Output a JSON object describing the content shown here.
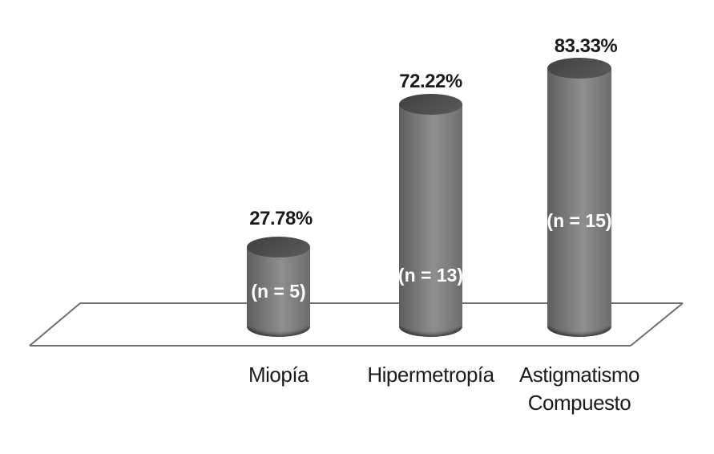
{
  "colors": {
    "background": "#ffffff",
    "cylinder_edge_dark": "#5e5e5e",
    "cylinder_mid_light": "#8f8f8f",
    "cylinder_right_edge": "#6d6d6d",
    "cylinder_top_cap": "#4d4d4d",
    "cylinder_bottom_rim": "#3a3a3a",
    "floor_line": "#6f6f6f",
    "label_text": "#1c1c1c",
    "n_label_text": "#ffffff"
  },
  "chart_data": {
    "type": "bar",
    "style": "3d-cylinder",
    "title": "",
    "xlabel": "",
    "ylabel": "",
    "categories": [
      "Miopía",
      "Hipermetropía",
      "Astigmatismo Compuesto"
    ],
    "values": [
      27.78,
      72.22,
      83.33
    ],
    "value_labels": [
      "27.78%",
      "72.22%",
      "83.33%"
    ],
    "n_values": [
      5,
      13,
      15
    ],
    "n_labels": [
      "(n = 5)",
      "(n = 13)",
      "(n = 15)"
    ],
    "ylim": [
      0,
      100
    ],
    "grid": false,
    "legend": false,
    "axes_visible": false
  }
}
